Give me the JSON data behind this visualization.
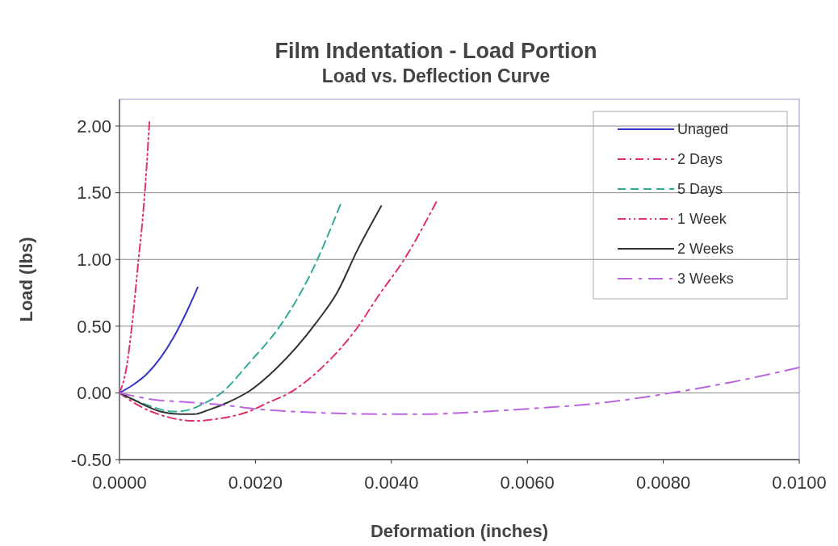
{
  "chart_data": {
    "type": "line",
    "title": "Film Indentation - Load Portion",
    "subtitle": "Load vs. Deflection Curve",
    "xlabel": "Deformation (inches)",
    "ylabel": "Load (lbs)",
    "xlim": [
      0,
      0.01
    ],
    "xticks": [
      {
        "value": 0,
        "label": "0.0000"
      },
      {
        "value": 0.002,
        "label": "0.0020"
      },
      {
        "value": 0.004,
        "label": "0.0040"
      },
      {
        "value": 0.006,
        "label": "0.0060"
      },
      {
        "value": 0.008,
        "label": "0.0080"
      },
      {
        "value": 0.01,
        "label": "0.0100"
      }
    ],
    "ylim": [
      -0.5,
      2.2
    ],
    "yticks": [
      {
        "value": -0.5,
        "label": "-0.50"
      },
      {
        "value": 0,
        "label": "0.00"
      },
      {
        "value": 0.5,
        "label": "0.50"
      },
      {
        "value": 1,
        "label": "1.00"
      },
      {
        "value": 1.5,
        "label": "1.50"
      },
      {
        "value": 2,
        "label": "2.00"
      }
    ],
    "grid": "y",
    "legend": "top right",
    "marker": "none",
    "series": [
      {
        "name": "Unaged",
        "color": "#3535c8",
        "line_style": "solid",
        "x": [
          0,
          0.0002,
          0.0004,
          0.0006,
          0.0008,
          0.001,
          0.00115
        ],
        "values": [
          0,
          0.06,
          0.14,
          0.26,
          0.42,
          0.62,
          0.79
        ]
      },
      {
        "name": "2 Days",
        "color": "#e0306a",
        "line_style": "dashdot",
        "x": [
          0,
          0.0003,
          0.0007,
          0.0011,
          0.0015,
          0.0019,
          0.0022,
          0.0025,
          0.003,
          0.0035,
          0.0038,
          0.0042,
          0.00466
        ],
        "values": [
          0,
          -0.1,
          -0.18,
          -0.21,
          -0.19,
          -0.14,
          -0.07,
          0,
          0.2,
          0.49,
          0.72,
          1.01,
          1.43
        ]
      },
      {
        "name": "5 Days",
        "color": "#33aa99",
        "line_style": "dashed",
        "x": [
          0,
          0.0004,
          0.0008,
          0.001,
          0.0012,
          0.0015,
          0.0019,
          0.0024,
          0.0028,
          0.00325
        ],
        "values": [
          0,
          -0.09,
          -0.14,
          -0.13,
          -0.09,
          0,
          0.22,
          0.53,
          0.88,
          1.41
        ]
      },
      {
        "name": "1 Week",
        "color": "#e0307a",
        "line_style": "dashdotdot",
        "x": [
          0,
          0.0001,
          0.00018,
          0.00028,
          0.00034,
          0.0004,
          0.00044
        ],
        "values": [
          0,
          0.18,
          0.49,
          1.0,
          1.3,
          1.7,
          2.03
        ]
      },
      {
        "name": "2 Weeks",
        "color": "#333333",
        "line_style": "solid",
        "x": [
          0,
          0.0002,
          0.0004,
          0.0006,
          0.0009,
          0.0011,
          0.0013,
          0.0016,
          0.0019,
          0.0023,
          0.0029,
          0.0032,
          0.0035,
          0.00385
        ],
        "values": [
          0,
          -0.05,
          -0.1,
          -0.14,
          -0.16,
          -0.16,
          -0.13,
          -0.07,
          0.01,
          0.18,
          0.53,
          0.75,
          1.07,
          1.4
        ]
      },
      {
        "name": "3 Weeks",
        "color": "#bb66dd",
        "line_style": "longdashdot",
        "x": [
          0,
          0.0005,
          0.001,
          0.0015,
          0.002,
          0.003,
          0.004,
          0.0045,
          0.005,
          0.006,
          0.007,
          0.008,
          0.009,
          0.01
        ],
        "values": [
          0,
          -0.05,
          -0.07,
          -0.09,
          -0.12,
          -0.15,
          -0.16,
          -0.16,
          -0.15,
          -0.12,
          -0.08,
          -0.01,
          0.08,
          0.19
        ]
      }
    ]
  }
}
